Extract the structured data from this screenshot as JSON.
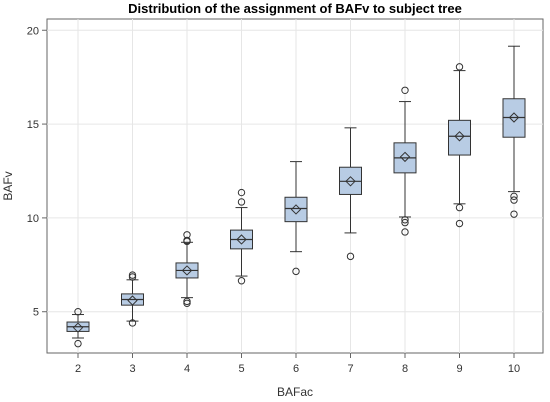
{
  "chart_data": {
    "type": "box",
    "title": "Distribution of the assignment of BAFv to subject tree",
    "xlabel": "BAFac",
    "ylabel": "BAFv",
    "categories": [
      "2",
      "3",
      "4",
      "5",
      "6",
      "7",
      "8",
      "9",
      "10"
    ],
    "ylim": [
      2.8,
      20.6
    ],
    "yticks": [
      5,
      10,
      15,
      20
    ],
    "grid": true,
    "colors": {
      "box_fill": "#b8cce4",
      "box_stroke": "#333333",
      "grid": "#e6e6e6"
    },
    "boxes": [
      {
        "category": "2",
        "whisker_low": 3.6,
        "q1": 3.95,
        "median": 4.2,
        "q3": 4.45,
        "whisker_high": 4.85,
        "mean": 4.15,
        "outliers": [
          3.3,
          5.0
        ]
      },
      {
        "category": "3",
        "whisker_low": 4.5,
        "q1": 5.35,
        "median": 5.65,
        "q3": 5.95,
        "whisker_high": 6.7,
        "mean": 5.6,
        "outliers": [
          4.4,
          6.85,
          6.95
        ]
      },
      {
        "category": "4",
        "whisker_low": 5.75,
        "q1": 6.8,
        "median": 7.2,
        "q3": 7.6,
        "whisker_high": 8.7,
        "mean": 7.2,
        "outliers": [
          5.45,
          5.55,
          8.75,
          8.8,
          9.1
        ]
      },
      {
        "category": "5",
        "whisker_low": 6.9,
        "q1": 8.35,
        "median": 8.85,
        "q3": 9.35,
        "whisker_high": 10.55,
        "mean": 8.85,
        "outliers": [
          6.65,
          10.85,
          11.35
        ]
      },
      {
        "category": "6",
        "whisker_low": 8.2,
        "q1": 9.8,
        "median": 10.5,
        "q3": 11.1,
        "whisker_high": 13.0,
        "mean": 10.45,
        "outliers": [
          7.15
        ]
      },
      {
        "category": "7",
        "whisker_low": 9.2,
        "q1": 11.25,
        "median": 11.95,
        "q3": 12.7,
        "whisker_high": 14.8,
        "mean": 11.95,
        "outliers": [
          7.95
        ]
      },
      {
        "category": "8",
        "whisker_low": 10.05,
        "q1": 12.4,
        "median": 13.2,
        "q3": 14.0,
        "whisker_high": 16.2,
        "mean": 13.25,
        "outliers": [
          9.25,
          9.75,
          9.9,
          16.8
        ]
      },
      {
        "category": "9",
        "whisker_low": 10.75,
        "q1": 13.35,
        "median": 14.35,
        "q3": 15.2,
        "whisker_high": 17.85,
        "mean": 14.35,
        "outliers": [
          9.7,
          10.55,
          18.05
        ]
      },
      {
        "category": "10",
        "whisker_low": 11.4,
        "q1": 14.3,
        "median": 15.35,
        "q3": 16.35,
        "whisker_high": 19.15,
        "mean": 15.35,
        "outliers": [
          10.2,
          10.95,
          11.15
        ]
      }
    ]
  }
}
